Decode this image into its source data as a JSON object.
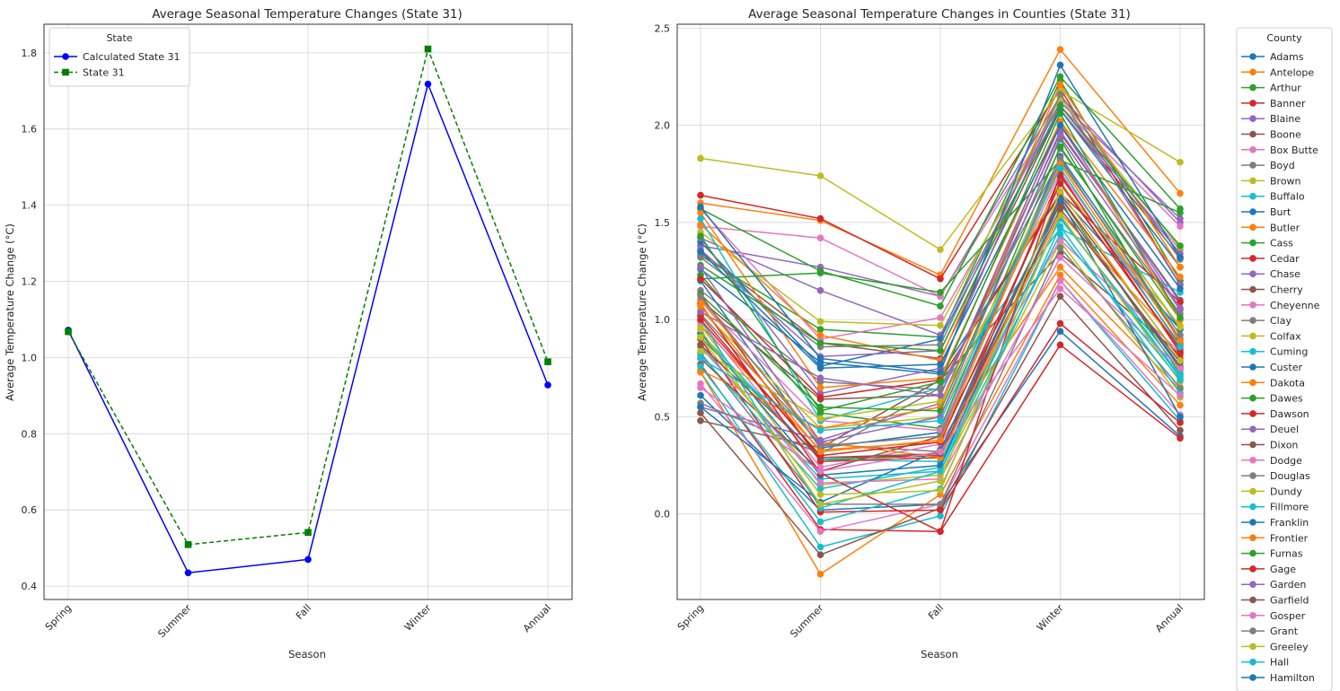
{
  "chart_data": [
    {
      "type": "line",
      "title": "Average Seasonal Temperature Changes (State 31)",
      "xlabel": "Season",
      "ylabel": "Average Temperature Change (°C)",
      "categories": [
        "Spring",
        "Summer",
        "Fall",
        "Winter",
        "Annual"
      ],
      "ylim": [
        0.365,
        1.875
      ],
      "yticks": [
        0.4,
        0.6,
        0.8,
        1.0,
        1.2,
        1.4,
        1.6,
        1.8
      ],
      "grid": true,
      "legend_title": "State",
      "legend_position": "top-left",
      "series": [
        {
          "name": "Calculated State 31",
          "color": "#0000ff",
          "marker": "circle",
          "dash": "solid",
          "values": [
            1.072,
            0.435,
            0.47,
            1.718,
            0.928
          ]
        },
        {
          "name": "State 31",
          "color": "#008000",
          "marker": "square",
          "dash": "dashed",
          "values": [
            1.068,
            0.509,
            0.541,
            1.81,
            0.989
          ]
        }
      ]
    },
    {
      "type": "line",
      "title": "Average Seasonal Temperature Changes in Counties (State 31)",
      "xlabel": "Season",
      "ylabel": "Average Temperature Change (°C)",
      "categories": [
        "Spring",
        "Summer",
        "Fall",
        "Winter",
        "Annual"
      ],
      "ylim": [
        -0.44,
        2.52
      ],
      "yticks": [
        0.0,
        0.5,
        1.0,
        1.5,
        2.0,
        2.5
      ],
      "grid": true,
      "legend_title": "County",
      "legend_position": "outside-right",
      "series": [
        {
          "name": "Adams",
          "color": "#1f77b4",
          "values": [
            1.26,
            0.78,
            0.72,
            1.64,
            0.95
          ]
        },
        {
          "name": "Antelope",
          "color": "#ff7f0e",
          "values": [
            1.6,
            1.51,
            1.23,
            2.39,
            1.65
          ]
        },
        {
          "name": "Arthur",
          "color": "#2ca02c",
          "values": [
            1.33,
            0.95,
            0.91,
            2.23,
            1.2
          ]
        },
        {
          "name": "Banner",
          "color": "#d62728",
          "values": [
            1.64,
            1.52,
            1.21,
            2.19,
            1.18
          ]
        },
        {
          "name": "Blaine",
          "color": "#9467bd",
          "values": [
            1.38,
            1.27,
            1.12,
            2.15,
            1.5
          ]
        },
        {
          "name": "Boone",
          "color": "#8c564b",
          "values": [
            0.48,
            0.34,
            0.69,
            1.34,
            0.82
          ]
        },
        {
          "name": "Box Butte",
          "color": "#e377c2",
          "values": [
            1.48,
            1.42,
            1.12,
            2.1,
            1.48
          ]
        },
        {
          "name": "Boyd",
          "color": "#7f7f7f",
          "values": [
            1.15,
            0.68,
            0.64,
            1.88,
            1.03
          ]
        },
        {
          "name": "Brown",
          "color": "#bcbd22",
          "values": [
            1.83,
            1.74,
            1.36,
            2.18,
            1.81
          ]
        },
        {
          "name": "Buffalo",
          "color": "#17becf",
          "values": [
            0.86,
            0.18,
            0.22,
            1.53,
            0.7
          ]
        },
        {
          "name": "Burt",
          "color": "#1f77b4",
          "values": [
            0.61,
            0.02,
            0.05,
            0.94,
            0.4
          ]
        },
        {
          "name": "Butler",
          "color": "#ff7f0e",
          "values": [
            0.97,
            0.33,
            0.37,
            1.27,
            0.64
          ]
        },
        {
          "name": "Cass",
          "color": "#2ca02c",
          "values": [
            0.91,
            0.28,
            0.3,
            1.63,
            0.72
          ]
        },
        {
          "name": "Cedar",
          "color": "#d62728",
          "values": [
            0.77,
            -0.08,
            -0.09,
            0.87,
            0.39
          ]
        },
        {
          "name": "Chase",
          "color": "#9467bd",
          "values": [
            1.42,
            1.15,
            0.92,
            2.12,
            1.52
          ]
        },
        {
          "name": "Cherry",
          "color": "#8c564b",
          "values": [
            1.35,
            0.88,
            0.8,
            2.08,
            1.32
          ]
        },
        {
          "name": "Cheyenne",
          "color": "#e377c2",
          "values": [
            1.57,
            0.9,
            1.01,
            2.08,
            1.36
          ]
        },
        {
          "name": "Clay",
          "color": "#7f7f7f",
          "values": [
            1.03,
            0.36,
            0.32,
            1.71,
            0.84
          ]
        },
        {
          "name": "Colfax",
          "color": "#bcbd22",
          "values": [
            0.97,
            0.15,
            0.2,
            1.4,
            0.6
          ]
        },
        {
          "name": "Cuming",
          "color": "#17becf",
          "values": [
            0.73,
            -0.17,
            -0.01,
            1.2,
            0.48
          ]
        },
        {
          "name": "Custer",
          "color": "#1f77b4",
          "values": [
            1.4,
            0.76,
            0.9,
            2.08,
            1.27
          ]
        },
        {
          "name": "Dakota",
          "color": "#ff7f0e",
          "values": [
            0.73,
            -0.31,
            0.1,
            1.23,
            0.56
          ]
        },
        {
          "name": "Dawes",
          "color": "#2ca02c",
          "values": [
            1.57,
            1.25,
            1.07,
            2.25,
            1.57
          ]
        },
        {
          "name": "Dawson",
          "color": "#d62728",
          "values": [
            1.02,
            0.29,
            0.3,
            1.63,
            0.8
          ]
        },
        {
          "name": "Deuel",
          "color": "#9467bd",
          "values": [
            1.42,
            0.62,
            0.75,
            2.15,
            1.18
          ]
        },
        {
          "name": "Dixon",
          "color": "#8c564b",
          "values": [
            0.52,
            -0.21,
            0.03,
            1.12,
            0.43
          ]
        },
        {
          "name": "Dodge",
          "color": "#e377c2",
          "values": [
            0.67,
            -0.09,
            0.05,
            1.2,
            0.51
          ]
        },
        {
          "name": "Douglas",
          "color": "#7f7f7f",
          "values": [
            0.83,
            0.05,
            0.05,
            1.37,
            0.65
          ]
        },
        {
          "name": "Dundy",
          "color": "#bcbd22",
          "values": [
            1.45,
            0.99,
            0.97,
            2.14,
            1.37
          ]
        },
        {
          "name": "Fillmore",
          "color": "#17becf",
          "values": [
            0.93,
            0.28,
            0.27,
            1.52,
            0.74
          ]
        },
        {
          "name": "Franklin",
          "color": "#1f77b4",
          "values": [
            1.2,
            0.34,
            0.42,
            1.84,
            0.95
          ]
        },
        {
          "name": "Frontier",
          "color": "#ff7f0e",
          "values": [
            1.49,
            0.92,
            0.79,
            2.21,
            1.27
          ]
        },
        {
          "name": "Furnas",
          "color": "#2ca02c",
          "values": [
            1.23,
            0.52,
            0.44,
            1.89,
            1.0
          ]
        },
        {
          "name": "Gage",
          "color": "#d62728",
          "values": [
            0.9,
            0.01,
            0.02,
            0.98,
            0.47
          ]
        },
        {
          "name": "Garden",
          "color": "#9467bd",
          "values": [
            1.36,
            0.81,
            0.84,
            2.1,
            1.34
          ]
        },
        {
          "name": "Garfield",
          "color": "#8c564b",
          "values": [
            1.1,
            0.59,
            0.61,
            1.96,
            1.1
          ]
        },
        {
          "name": "Gosper",
          "color": "#e377c2",
          "values": [
            1.1,
            0.48,
            0.43,
            1.76,
            0.9
          ]
        },
        {
          "name": "Grant",
          "color": "#7f7f7f",
          "values": [
            1.32,
            0.86,
            0.87,
            2.16,
            1.31
          ]
        },
        {
          "name": "Greeley",
          "color": "#bcbd22",
          "values": [
            1.05,
            0.44,
            0.5,
            1.81,
            0.96
          ]
        },
        {
          "name": "Hall",
          "color": "#17becf",
          "values": [
            0.82,
            0.13,
            0.24,
            1.53,
            0.71
          ]
        },
        {
          "name": "Hamilton",
          "color": "#1f77b4",
          "values": [
            0.93,
            0.2,
            0.25,
            1.6,
            0.76
          ]
        },
        {
          "color": "#ff7f0e",
          "values": [
            1.55,
            0.65,
            0.7,
            2.02,
            1.22
          ]
        },
        {
          "color": "#2ca02c",
          "values": [
            1.28,
            0.88,
            0.84,
            2.1,
            1.38
          ]
        },
        {
          "color": "#d62728",
          "values": [
            1.13,
            0.27,
            0.29,
            1.74,
            0.87
          ]
        },
        {
          "color": "#9467bd",
          "values": [
            0.55,
            0.38,
            0.57,
            1.97,
            1.09
          ]
        },
        {
          "color": "#e377c2",
          "values": [
            0.99,
            0.24,
            0.36,
            1.41,
            0.83
          ]
        },
        {
          "color": "#17becf",
          "values": [
            1.52,
            0.48,
            0.65,
            1.47,
            1.14
          ]
        },
        {
          "color": "#1f77b4",
          "values": [
            1.58,
            0.8,
            0.73,
            2.31,
            1.32
          ]
        },
        {
          "color": "#2ca02c",
          "values": [
            1.21,
            1.24,
            1.14,
            1.82,
            1.55
          ]
        },
        {
          "color": "#d62728",
          "values": [
            1.21,
            0.6,
            0.69,
            1.65,
            1.09
          ]
        },
        {
          "color": "#bcbd22",
          "values": [
            0.84,
            0.49,
            0.58,
            1.7,
            0.97
          ]
        },
        {
          "color": "#ff7f0e",
          "values": [
            0.74,
            0.44,
            0.55,
            2.02,
            1.0
          ]
        },
        {
          "color": "#7f7f7f",
          "values": [
            0.57,
            0.31,
            0.65,
            1.83,
            0.9
          ]
        },
        {
          "color": "#17becf",
          "values": [
            0.76,
            -0.04,
            0.13,
            1.48,
            0.62
          ]
        },
        {
          "color": "#8c564b",
          "values": [
            0.8,
            0.22,
            0.4,
            1.6,
            0.75
          ]
        },
        {
          "color": "#2ca02c",
          "values": [
            1.13,
            0.55,
            0.53,
            1.93,
            0.88
          ]
        },
        {
          "color": "#d62728",
          "values": [
            1.08,
            0.21,
            -0.09,
            1.75,
            0.83
          ]
        },
        {
          "color": "#9467bd",
          "values": [
            1.04,
            0.7,
            0.61,
            2.0,
            1.06
          ]
        },
        {
          "color": "#1f77b4",
          "values": [
            0.55,
            0.06,
            0.33,
            1.62,
            0.5
          ]
        },
        {
          "color": "#ff7f0e",
          "values": [
            1.1,
            0.37,
            0.29,
            1.55,
            0.87
          ]
        },
        {
          "color": "#e377c2",
          "values": [
            0.87,
            0.16,
            0.18,
            1.32,
            0.75
          ]
        },
        {
          "color": "#bcbd22",
          "values": [
            0.91,
            0.1,
            0.12,
            1.54,
            0.68
          ]
        },
        {
          "color": "#17becf",
          "values": [
            1.0,
            0.03,
            0.22,
            1.44,
            0.69
          ]
        },
        {
          "color": "#7f7f7f",
          "values": [
            1.12,
            0.35,
            0.4,
            1.82,
            0.92
          ]
        },
        {
          "color": "#8c564b",
          "values": [
            0.87,
            0.29,
            0.31,
            1.57,
            0.78
          ]
        },
        {
          "color": "#1f77b4",
          "values": [
            1.35,
            0.75,
            0.77,
            2.0,
            1.16
          ]
        },
        {
          "color": "#2ca02c",
          "values": [
            1.43,
            0.53,
            0.68,
            2.06,
            1.01
          ]
        },
        {
          "color": "#d62728",
          "values": [
            1.0,
            0.3,
            0.37,
            1.7,
            0.85
          ]
        },
        {
          "color": "#9467bd",
          "values": [
            1.27,
            0.37,
            0.5,
            1.94,
            1.05
          ]
        },
        {
          "color": "#ff7f0e",
          "values": [
            1.07,
            0.32,
            0.38,
            1.8,
            0.89
          ]
        },
        {
          "color": "#e377c2",
          "values": [
            0.65,
            0.22,
            0.32,
            1.16,
            0.61
          ]
        },
        {
          "color": "#bcbd22",
          "values": [
            0.95,
            0.05,
            0.17,
            1.66,
            0.79
          ]
        },
        {
          "color": "#17becf",
          "values": [
            0.8,
            0.43,
            0.48,
            1.78,
            0.86
          ]
        }
      ]
    }
  ]
}
